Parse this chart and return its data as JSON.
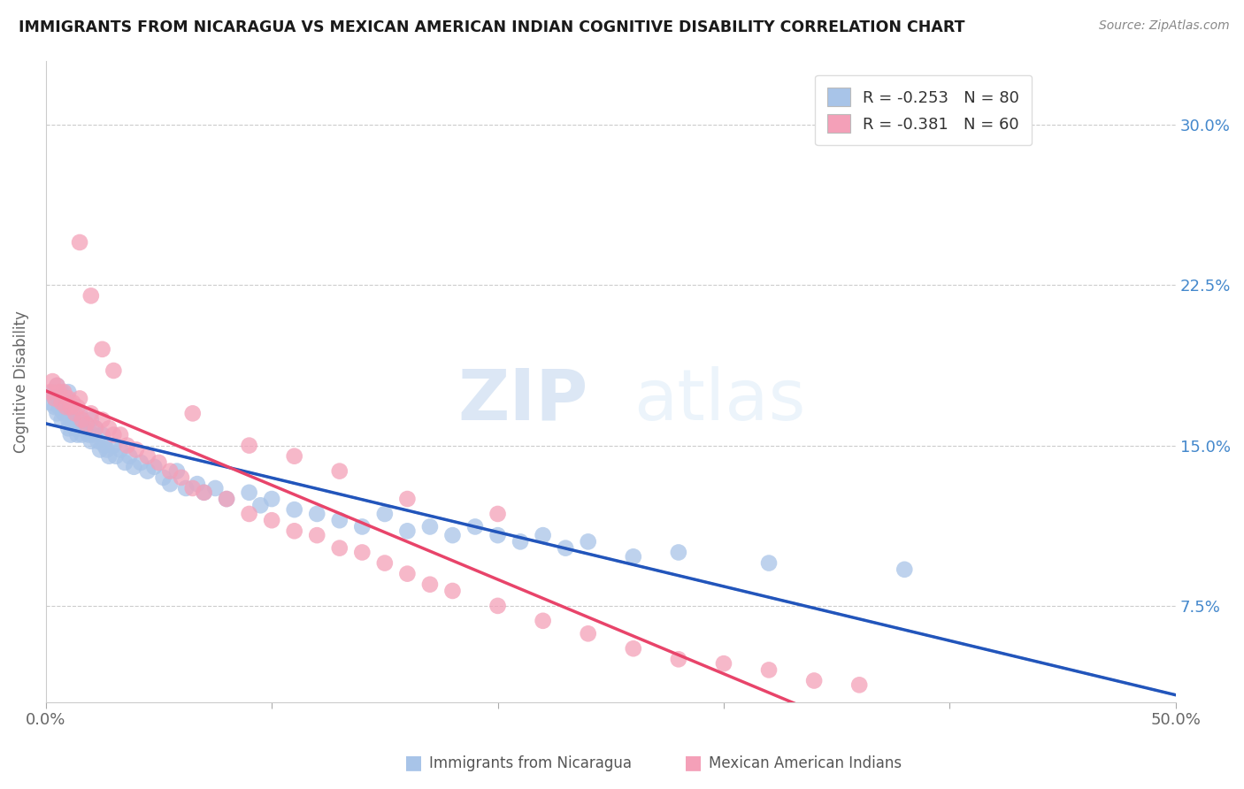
{
  "title": "IMMIGRANTS FROM NICARAGUA VS MEXICAN AMERICAN INDIAN COGNITIVE DISABILITY CORRELATION CHART",
  "source": "Source: ZipAtlas.com",
  "ylabel": "Cognitive Disability",
  "yticks": [
    "7.5%",
    "15.0%",
    "22.5%",
    "30.0%"
  ],
  "ytick_vals": [
    0.075,
    0.15,
    0.225,
    0.3
  ],
  "xlim": [
    0.0,
    0.5
  ],
  "ylim": [
    0.03,
    0.33
  ],
  "blue_color": "#a8c4e8",
  "pink_color": "#f4a0b8",
  "blue_line_color": "#2255bb",
  "pink_line_color": "#e8446a",
  "blue_R": -0.253,
  "blue_N": 80,
  "pink_R": -0.381,
  "pink_N": 60,
  "watermark_zip": "ZIP",
  "watermark_atlas": "atlas",
  "legend_label_blue": "Immigrants from Nicaragua",
  "legend_label_pink": "Mexican American Indians",
  "blue_scatter_x": [
    0.002,
    0.003,
    0.004,
    0.004,
    0.005,
    0.005,
    0.006,
    0.006,
    0.007,
    0.007,
    0.008,
    0.008,
    0.009,
    0.009,
    0.01,
    0.01,
    0.01,
    0.011,
    0.011,
    0.012,
    0.012,
    0.013,
    0.013,
    0.014,
    0.014,
    0.015,
    0.015,
    0.016,
    0.016,
    0.017,
    0.018,
    0.019,
    0.02,
    0.02,
    0.021,
    0.022,
    0.023,
    0.024,
    0.025,
    0.026,
    0.027,
    0.028,
    0.03,
    0.031,
    0.033,
    0.035,
    0.037,
    0.039,
    0.042,
    0.045,
    0.048,
    0.052,
    0.055,
    0.058,
    0.062,
    0.067,
    0.07,
    0.075,
    0.08,
    0.09,
    0.095,
    0.1,
    0.11,
    0.12,
    0.13,
    0.14,
    0.15,
    0.16,
    0.17,
    0.18,
    0.19,
    0.2,
    0.21,
    0.22,
    0.23,
    0.24,
    0.26,
    0.28,
    0.32,
    0.38
  ],
  "blue_scatter_y": [
    0.17,
    0.175,
    0.168,
    0.172,
    0.165,
    0.178,
    0.172,
    0.168,
    0.175,
    0.162,
    0.17,
    0.165,
    0.168,
    0.172,
    0.175,
    0.162,
    0.158,
    0.168,
    0.155,
    0.165,
    0.16,
    0.162,
    0.158,
    0.16,
    0.155,
    0.165,
    0.158,
    0.162,
    0.155,
    0.158,
    0.16,
    0.155,
    0.162,
    0.152,
    0.155,
    0.158,
    0.152,
    0.148,
    0.155,
    0.15,
    0.148,
    0.145,
    0.15,
    0.145,
    0.148,
    0.142,
    0.145,
    0.14,
    0.142,
    0.138,
    0.14,
    0.135,
    0.132,
    0.138,
    0.13,
    0.132,
    0.128,
    0.13,
    0.125,
    0.128,
    0.122,
    0.125,
    0.12,
    0.118,
    0.115,
    0.112,
    0.118,
    0.11,
    0.112,
    0.108,
    0.112,
    0.108,
    0.105,
    0.108,
    0.102,
    0.105,
    0.098,
    0.1,
    0.095,
    0.092
  ],
  "pink_scatter_x": [
    0.002,
    0.003,
    0.004,
    0.005,
    0.006,
    0.007,
    0.008,
    0.009,
    0.01,
    0.011,
    0.012,
    0.013,
    0.014,
    0.015,
    0.016,
    0.018,
    0.02,
    0.022,
    0.025,
    0.028,
    0.03,
    0.033,
    0.036,
    0.04,
    0.045,
    0.05,
    0.055,
    0.06,
    0.065,
    0.07,
    0.08,
    0.09,
    0.1,
    0.11,
    0.12,
    0.13,
    0.14,
    0.15,
    0.16,
    0.17,
    0.18,
    0.2,
    0.22,
    0.24,
    0.26,
    0.28,
    0.3,
    0.32,
    0.34,
    0.36,
    0.015,
    0.02,
    0.025,
    0.03,
    0.065,
    0.09,
    0.11,
    0.13,
    0.16,
    0.2
  ],
  "pink_scatter_y": [
    0.175,
    0.18,
    0.172,
    0.178,
    0.175,
    0.17,
    0.175,
    0.168,
    0.172,
    0.168,
    0.17,
    0.165,
    0.168,
    0.172,
    0.162,
    0.16,
    0.165,
    0.158,
    0.162,
    0.158,
    0.155,
    0.155,
    0.15,
    0.148,
    0.145,
    0.142,
    0.138,
    0.135,
    0.13,
    0.128,
    0.125,
    0.118,
    0.115,
    0.11,
    0.108,
    0.102,
    0.1,
    0.095,
    0.09,
    0.085,
    0.082,
    0.075,
    0.068,
    0.062,
    0.055,
    0.05,
    0.048,
    0.045,
    0.04,
    0.038,
    0.245,
    0.22,
    0.195,
    0.185,
    0.165,
    0.15,
    0.145,
    0.138,
    0.125,
    0.118
  ]
}
